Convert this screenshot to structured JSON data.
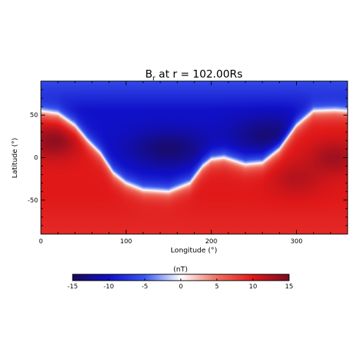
{
  "chart_data": {
    "type": "heatmap",
    "title": "B",
    "title_subscript": "r",
    "title_suffix": " at r = 102.00Rs",
    "xlabel": "Longitude (°)",
    "ylabel": "Latitude (°)",
    "xlim": [
      0,
      360
    ],
    "ylim": [
      -90,
      90
    ],
    "x_ticks": [
      0,
      100,
      200,
      300
    ],
    "y_ticks": [
      -50,
      0,
      50
    ],
    "colorbar": {
      "label": "(nT)",
      "range": [
        -15,
        15
      ],
      "ticks": [
        -15,
        -10,
        -5,
        0,
        5,
        10,
        15
      ],
      "colors": [
        "#1a0a5a",
        "#1010c8",
        "#3a58f0",
        "#ffffff",
        "#f07060",
        "#e01818",
        "#7a0c22"
      ]
    },
    "field_description_points": {
      "north_pole_value": -6,
      "south_pole_value": 9,
      "neutral_line": [
        [
          0,
          55
        ],
        [
          20,
          52
        ],
        [
          40,
          38
        ],
        [
          55,
          20
        ],
        [
          70,
          5
        ],
        [
          85,
          -18
        ],
        [
          100,
          -30
        ],
        [
          120,
          -38
        ],
        [
          150,
          -40
        ],
        [
          175,
          -30
        ],
        [
          190,
          -10
        ],
        [
          200,
          -2
        ],
        [
          215,
          0
        ],
        [
          240,
          -8
        ],
        [
          260,
          -6
        ],
        [
          280,
          10
        ],
        [
          300,
          38
        ],
        [
          320,
          55
        ],
        [
          345,
          56
        ],
        [
          360,
          55
        ]
      ],
      "negative_cores": [
        {
          "lon": 150,
          "lat": 10,
          "value": -14
        },
        {
          "lon": 270,
          "lat": 25,
          "value": -14
        }
      ],
      "positive_cores": [
        {
          "lon": 15,
          "lat": 20,
          "value": 14
        },
        {
          "lon": 345,
          "lat": 0,
          "value": 13
        },
        {
          "lon": 300,
          "lat": -25,
          "value": 12
        }
      ]
    }
  }
}
